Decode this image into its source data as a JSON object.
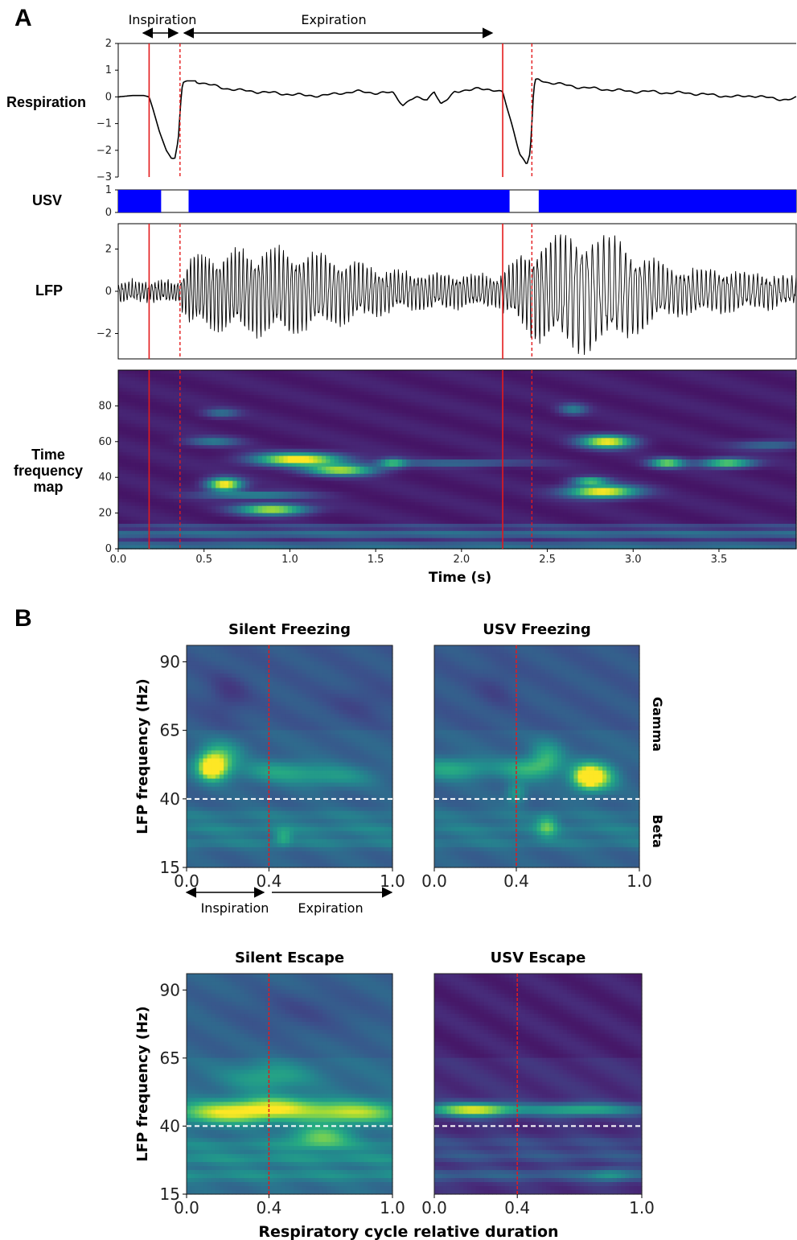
{
  "panel_a": {
    "letter": "A",
    "phase_labels": {
      "inspiration": "Inspiration",
      "expiration": "Expiration"
    },
    "row_labels": {
      "respiration": "Respiration",
      "usv": "USV",
      "lfp": "LFP",
      "tf_map": [
        "Time",
        "frequency",
        "map"
      ]
    },
    "x_ticks": [
      "0.0",
      "0.5",
      "1.0",
      "1.5",
      "2.0",
      "2.5",
      "3.0",
      "3.5"
    ],
    "xlabel": "Time (s)"
  },
  "panel_b": {
    "letter": "B",
    "ylabel": "LFP frequency (Hz)",
    "xlabel": "Respiratory cycle relative duration",
    "y_ticks": [
      "90",
      "65",
      "40",
      "15"
    ],
    "x_ticks": [
      "0.0",
      "0.4",
      "1.0"
    ],
    "phase_labels": {
      "inspiration": "Inspiration",
      "expiration": "Expiration"
    },
    "band_labels": {
      "gamma": "Gamma",
      "beta": "Beta"
    },
    "subplot_titles": [
      "Silent Freezing",
      "USV Freezing",
      "Silent Escape",
      "USV Escape"
    ]
  },
  "chart_data": [
    {
      "type": "line",
      "name": "Respiration",
      "xlim": [
        0,
        3.95
      ],
      "ylim": [
        -3,
        2
      ],
      "y_ticks": [
        2,
        1,
        0,
        -1,
        -2,
        -3
      ],
      "color": "#000000",
      "x": [
        0.0,
        0.08,
        0.15,
        0.18,
        0.2,
        0.24,
        0.28,
        0.31,
        0.33,
        0.35,
        0.36,
        0.37,
        0.38,
        0.4,
        0.45,
        0.5,
        0.6,
        0.7,
        0.8,
        0.9,
        1.0,
        1.1,
        1.2,
        1.3,
        1.4,
        1.5,
        1.6,
        1.66,
        1.7,
        1.74,
        1.8,
        1.84,
        1.88,
        1.92,
        1.96,
        2.0,
        2.05,
        2.1,
        2.15,
        2.2,
        2.24,
        2.26,
        2.3,
        2.34,
        2.38,
        2.4,
        2.41,
        2.42,
        2.43,
        2.45,
        2.5,
        2.6,
        2.7,
        2.8,
        2.9,
        3.0,
        3.1,
        3.2,
        3.3,
        3.4,
        3.5,
        3.6,
        3.7,
        3.8,
        3.9,
        3.95
      ],
      "y": [
        0.0,
        0.05,
        0.05,
        0.0,
        -0.4,
        -1.3,
        -2.0,
        -2.3,
        -2.3,
        -1.6,
        -0.6,
        0.3,
        0.55,
        0.6,
        0.6,
        0.5,
        0.35,
        0.25,
        0.2,
        0.15,
        0.1,
        0.05,
        0.05,
        0.15,
        0.2,
        0.15,
        0.15,
        -0.3,
        -0.1,
        -0.05,
        -0.1,
        0.25,
        -0.3,
        -0.1,
        0.2,
        0.25,
        0.25,
        0.3,
        0.3,
        0.25,
        0.15,
        -0.3,
        -1.2,
        -2.1,
        -2.55,
        -2.1,
        -1.0,
        0.2,
        0.6,
        0.65,
        0.55,
        0.45,
        0.35,
        0.3,
        0.25,
        0.2,
        0.2,
        0.15,
        0.15,
        0.1,
        0.05,
        0.0,
        0.05,
        -0.05,
        -0.1,
        -0.05
      ],
      "event_lines": {
        "solid": [
          0.18,
          2.24
        ],
        "dashed": [
          0.36,
          2.41
        ]
      }
    },
    {
      "type": "area",
      "name": "USV",
      "xlim": [
        0,
        3.95
      ],
      "ylim": [
        0,
        1
      ],
      "y_ticks": [
        1,
        0
      ],
      "color": "#0000ff",
      "segments": [
        [
          0.0,
          0.25
        ],
        [
          0.41,
          2.28
        ],
        [
          2.45,
          3.95
        ]
      ]
    },
    {
      "type": "line",
      "name": "LFP",
      "xlim": [
        0,
        3.95
      ],
      "ylim": [
        -3.2,
        3.2
      ],
      "y_ticks": [
        2,
        0,
        -2
      ],
      "color": "#000000",
      "envelope": [
        [
          0.0,
          0.5,
          50
        ],
        [
          0.35,
          0.5,
          55
        ],
        [
          0.42,
          1.8,
          48
        ],
        [
          0.9,
          2.2,
          42
        ],
        [
          1.2,
          1.8,
          40
        ],
        [
          1.6,
          1.0,
          44
        ],
        [
          2.2,
          0.8,
          46
        ],
        [
          2.45,
          2.5,
          40
        ],
        [
          2.7,
          3.0,
          30
        ],
        [
          2.9,
          2.6,
          32
        ],
        [
          3.2,
          1.2,
          40
        ],
        [
          3.6,
          1.0,
          40
        ],
        [
          3.95,
          0.7,
          40
        ]
      ],
      "event_lines": {
        "solid": [
          0.18,
          2.24
        ],
        "dashed": [
          0.36,
          2.41
        ]
      }
    },
    {
      "type": "heatmap",
      "name": "Time frequency map",
      "xlim": [
        0,
        3.95
      ],
      "ylim": [
        0,
        100
      ],
      "y_ticks": [
        80,
        60,
        40,
        20,
        0
      ],
      "colormap": "viridis",
      "hotspots": [
        [
          0.62,
          36,
          0.1,
          3.5,
          1.0
        ],
        [
          0.9,
          22,
          0.2,
          3.0,
          0.85
        ],
        [
          1.05,
          50,
          0.25,
          3.5,
          1.0
        ],
        [
          1.3,
          44,
          0.2,
          3.0,
          0.8
        ],
        [
          1.6,
          48,
          0.08,
          2.5,
          0.55
        ],
        [
          0.8,
          30,
          0.3,
          2.0,
          0.45
        ],
        [
          0.55,
          60,
          0.15,
          2.5,
          0.35
        ],
        [
          0.6,
          76,
          0.1,
          2.5,
          0.3
        ],
        [
          2.82,
          32,
          0.2,
          3.5,
          1.0
        ],
        [
          2.85,
          60,
          0.15,
          3.5,
          0.95
        ],
        [
          3.2,
          48,
          0.1,
          2.5,
          0.75
        ],
        [
          3.55,
          48,
          0.15,
          2.5,
          0.75
        ],
        [
          2.75,
          38,
          0.1,
          2.0,
          0.65
        ],
        [
          2.65,
          78,
          0.08,
          3.0,
          0.35
        ],
        [
          2.0,
          48,
          0.4,
          2.0,
          0.3
        ],
        [
          3.8,
          58,
          0.2,
          2.5,
          0.3
        ]
      ],
      "event_lines": {
        "solid": [
          0.18,
          2.24
        ],
        "dashed": [
          0.36,
          2.41
        ]
      }
    },
    {
      "type": "heatmap",
      "title": "Silent Freezing",
      "xlim": [
        0,
        1
      ],
      "ylim": [
        15,
        96
      ],
      "colormap": "viridis",
      "background": 0.32,
      "rows": [
        [
          24,
          0.12
        ],
        [
          29,
          0.14
        ],
        [
          34,
          0.1
        ]
      ],
      "blobs": [
        [
          0.13,
          52,
          0.08,
          5,
          0.75
        ],
        [
          0.12,
          51,
          0.04,
          3,
          0.4
        ],
        [
          0.45,
          50,
          0.2,
          4,
          0.25
        ],
        [
          0.72,
          48,
          0.2,
          4,
          0.2
        ],
        [
          0.47,
          26,
          0.04,
          3,
          0.25
        ],
        [
          0.18,
          57,
          0.1,
          5,
          0.2
        ]
      ],
      "dims": [
        [
          0.2,
          78,
          0.1,
          8,
          0.1
        ],
        [
          0.85,
          75,
          0.15,
          6,
          0.06
        ]
      ],
      "red_line": 0.4,
      "white_line": 40
    },
    {
      "type": "heatmap",
      "title": "USV Freezing",
      "xlim": [
        0,
        1
      ],
      "ylim": [
        15,
        96
      ],
      "colormap": "viridis",
      "background": 0.32,
      "rows": [
        [
          24,
          0.1
        ],
        [
          29,
          0.12
        ],
        [
          34,
          0.08
        ]
      ],
      "blobs": [
        [
          0.77,
          48,
          0.1,
          5,
          0.75
        ],
        [
          0.75,
          48,
          0.05,
          3,
          0.4
        ],
        [
          0.1,
          51,
          0.2,
          4,
          0.3
        ],
        [
          0.45,
          51,
          0.12,
          4,
          0.3
        ],
        [
          0.55,
          55,
          0.08,
          6,
          0.3
        ],
        [
          0.55,
          30,
          0.05,
          4,
          0.35
        ],
        [
          0.4,
          42,
          0.05,
          4,
          0.25
        ]
      ],
      "dims": [
        [
          0.3,
          80,
          0.1,
          8,
          0.06
        ]
      ],
      "red_line": 0.4,
      "white_line": 40
    },
    {
      "type": "heatmap",
      "title": "Silent Escape",
      "xlim": [
        0,
        1
      ],
      "ylim": [
        15,
        96
      ],
      "colormap": "viridis",
      "background": 0.36,
      "rows": [
        [
          22,
          0.14
        ],
        [
          28,
          0.16
        ],
        [
          33,
          0.12
        ]
      ],
      "blobs": [
        [
          0.2,
          45,
          0.25,
          4,
          0.6
        ],
        [
          0.8,
          45,
          0.25,
          4,
          0.55
        ],
        [
          0.45,
          47,
          0.2,
          4,
          0.4
        ],
        [
          0.65,
          36,
          0.15,
          4,
          0.4
        ],
        [
          0.4,
          58,
          0.2,
          5,
          0.25
        ]
      ],
      "dims": [
        [
          0.55,
          82,
          0.3,
          8,
          0.08
        ]
      ],
      "red_line": 0.4,
      "white_line": 40
    },
    {
      "type": "heatmap",
      "title": "USV Escape",
      "xlim": [
        0,
        1
      ],
      "ylim": [
        15,
        96
      ],
      "colormap": "viridis",
      "background": 0.14,
      "rows": [
        [
          22,
          0.18
        ],
        [
          29,
          0.14
        ],
        [
          34,
          0.1
        ],
        [
          46,
          0.22
        ]
      ],
      "blobs": [
        [
          0.2,
          46,
          0.18,
          2.5,
          0.65
        ],
        [
          0.7,
          46,
          0.2,
          2.5,
          0.3
        ],
        [
          0.85,
          22,
          0.1,
          2.5,
          0.25
        ]
      ],
      "dims": [],
      "red_line": 0.4,
      "white_line": 40
    }
  ]
}
